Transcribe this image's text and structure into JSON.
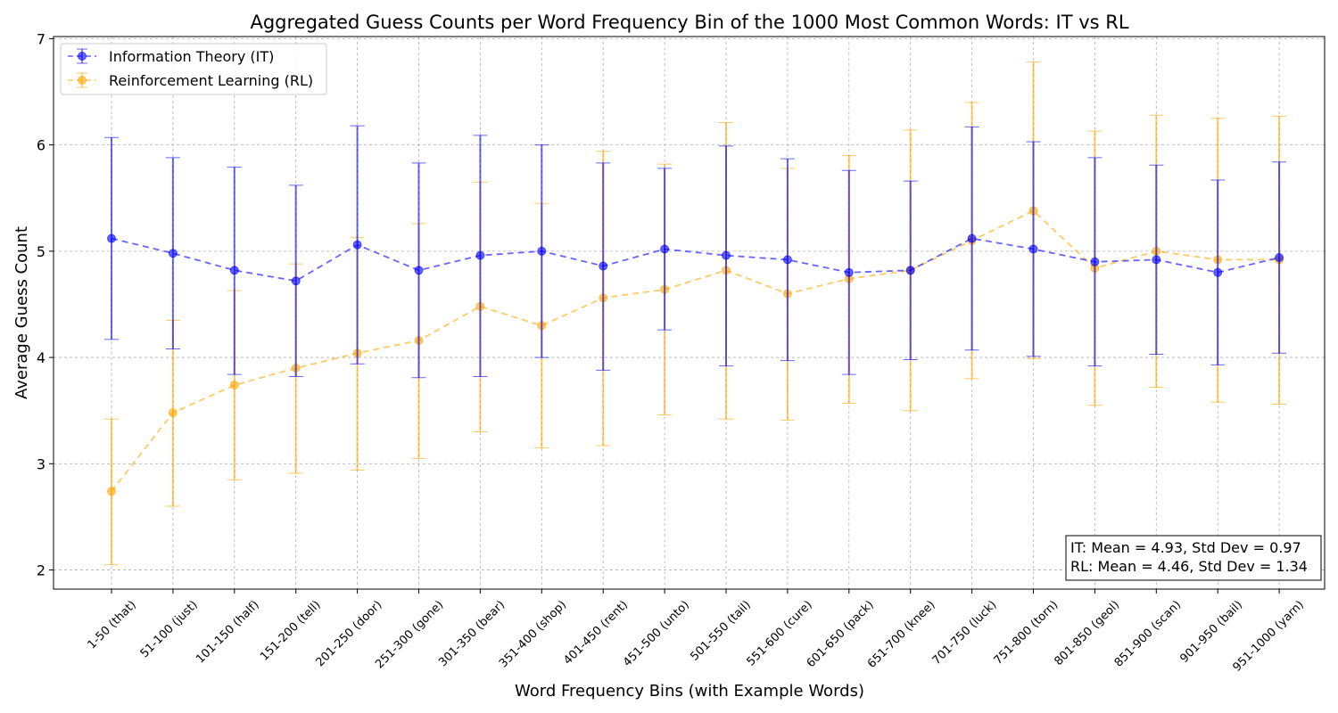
{
  "colors": {
    "it": "#0000ff",
    "rl": "#ffa500",
    "grid": "#b0b0b0",
    "axes": "#000000"
  },
  "chart_data": {
    "type": "line",
    "title": "Aggregated Guess Counts per Word Frequency Bin of the 1000 Most Common Words: IT vs RL",
    "xlabel": "Word Frequency Bins (with Example Words)",
    "ylabel": "Average Guess Count",
    "ylim": [
      1.82,
      7.02
    ],
    "yticks": [
      "2",
      "3",
      "4",
      "5",
      "6",
      "7"
    ],
    "grid": true,
    "legend_position": "upper-left",
    "categories": [
      "1-50 (that)",
      "51-100 (just)",
      "101-150 (half)",
      "151-200 (tell)",
      "201-250 (door)",
      "251-300 (gone)",
      "301-350 (bear)",
      "351-400 (shop)",
      "401-450 (rent)",
      "451-500 (unto)",
      "501-550 (tail)",
      "551-600 (cure)",
      "601-650 (pack)",
      "651-700 (knee)",
      "701-750 (luck)",
      "751-800 (torn)",
      "801-850 (geol)",
      "851-900 (scan)",
      "901-950 (bail)",
      "951-1000 (yarn)"
    ],
    "series": [
      {
        "name": "Information Theory (IT)",
        "key": "it",
        "values": [
          5.12,
          4.98,
          4.82,
          4.72,
          5.06,
          4.82,
          4.96,
          5.0,
          4.86,
          5.02,
          4.96,
          4.92,
          4.8,
          4.82,
          5.12,
          5.02,
          4.9,
          4.92,
          4.8,
          4.94
        ],
        "err_low": [
          4.17,
          4.08,
          3.84,
          3.82,
          3.94,
          3.81,
          3.82,
          4.0,
          3.88,
          4.26,
          3.92,
          3.97,
          3.84,
          3.98,
          4.07,
          4.01,
          3.92,
          4.03,
          3.93,
          4.04
        ],
        "err_high": [
          6.07,
          5.88,
          5.79,
          5.62,
          6.18,
          5.83,
          6.09,
          6.0,
          5.83,
          5.78,
          5.99,
          5.87,
          5.76,
          5.66,
          6.17,
          6.03,
          5.88,
          5.81,
          5.67,
          5.84
        ]
      },
      {
        "name": "Reinforcement Learning (RL)",
        "key": "rl",
        "values": [
          2.74,
          3.48,
          3.74,
          3.9,
          4.04,
          4.16,
          4.48,
          4.3,
          4.56,
          4.64,
          4.82,
          4.6,
          4.74,
          4.82,
          5.1,
          5.38,
          4.84,
          5.0,
          4.92,
          4.92
        ],
        "err_low": [
          2.05,
          2.6,
          2.85,
          2.91,
          2.94,
          3.05,
          3.3,
          3.15,
          3.17,
          3.46,
          3.42,
          3.41,
          3.57,
          3.5,
          3.8,
          3.99,
          3.55,
          3.72,
          3.58,
          3.56
        ],
        "err_high": [
          3.42,
          4.35,
          4.63,
          4.88,
          5.13,
          5.26,
          5.65,
          5.45,
          5.94,
          5.82,
          6.21,
          5.78,
          5.9,
          6.14,
          6.4,
          6.78,
          6.13,
          6.28,
          6.25,
          6.27
        ]
      }
    ]
  },
  "legend": {
    "it_label": "Information Theory (IT)",
    "rl_label": "Reinforcement Learning (RL)"
  },
  "stats": {
    "it_line": "IT: Mean = 4.93, Std Dev = 0.97",
    "rl_line": "RL: Mean = 4.46, Std Dev = 1.34"
  }
}
